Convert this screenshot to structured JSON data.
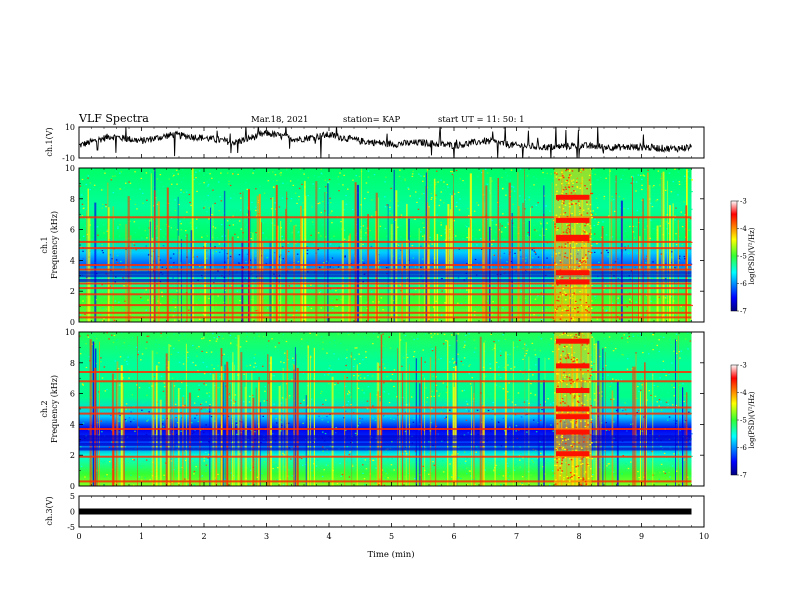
{
  "header": {
    "title": "VLF Spectra",
    "date": "Mar.18, 2021",
    "station": "station= KAP",
    "start": "start UT = 11: 50: 1"
  },
  "chart_data": [
    {
      "type": "line",
      "name": "ch1-waveform",
      "ylabel": "ch.1(V)",
      "xlim": [
        0,
        10
      ],
      "ylim": [
        -10,
        10
      ],
      "yticks": [
        "10",
        "-10"
      ],
      "series": [
        {
          "x": [
            0,
            0.5,
            1,
            1.5,
            2,
            2.5,
            3,
            3.5,
            4,
            4.5,
            5,
            5.5,
            6,
            6.5,
            7,
            7.5,
            8,
            8.5,
            9,
            9.5,
            9.8
          ],
          "values": [
            -2,
            4,
            1,
            5,
            3,
            0,
            6,
            2,
            5,
            1,
            -1,
            0,
            -2,
            1,
            -2,
            -3,
            -2,
            -3,
            -3,
            -4,
            -3
          ]
        }
      ],
      "color": "#000000"
    },
    {
      "type": "heatmap",
      "name": "ch1-spectrogram",
      "ylabel": "ch.1\nFrequency (kHz)",
      "xlim": [
        0,
        10
      ],
      "ylim": [
        0,
        10
      ],
      "yticks": [
        "0",
        "2",
        "4",
        "6",
        "8",
        "10"
      ],
      "colorbar": {
        "label": "log(PSD)(V²/Hz)",
        "min": -7,
        "max": -3,
        "ticks": [
          "-3",
          "-4",
          "-5",
          "-6",
          "-7"
        ]
      },
      "data_end_min": 9.8,
      "strong_bands_khz": [
        0.3,
        0.6,
        1.1,
        1.8,
        2.2,
        2.5,
        3.4,
        3.7,
        4.8,
        5.2,
        6.8
      ],
      "weak_bands_khz": [
        2.7,
        3.0,
        3.2
      ],
      "burst_interval_min": [
        7.6,
        8.2
      ],
      "burst_lines_khz": [
        2.6,
        3.2,
        5.4,
        5.5,
        6.6,
        8.1
      ]
    },
    {
      "type": "heatmap",
      "name": "ch2-spectrogram",
      "ylabel": "ch.2\nFrequency (kHz)",
      "xlim": [
        0,
        10
      ],
      "ylim": [
        0,
        10
      ],
      "yticks": [
        "0",
        "2",
        "4",
        "6",
        "8",
        "10"
      ],
      "colorbar": {
        "label": "log(PSD)(V²/Hz)",
        "min": -7,
        "max": -3,
        "ticks": [
          "-3",
          "-4",
          "-5",
          "-6",
          "-7"
        ]
      },
      "data_end_min": 9.8,
      "strong_bands_khz": [
        0.3,
        1.9,
        3.7,
        4.7,
        5.1,
        6.8,
        7.4
      ],
      "weak_bands_khz": [
        2.4,
        2.7,
        3.0,
        3.2
      ],
      "burst_interval_min": [
        7.6,
        8.2
      ],
      "burst_lines_khz": [
        2.1,
        3.5,
        4.5,
        5.0,
        6.2,
        7.8,
        9.4
      ]
    },
    {
      "type": "line",
      "name": "ch3-waveform",
      "ylabel": "ch.3(V)",
      "xlabel": "Time (min)",
      "xlim": [
        0,
        10
      ],
      "ylim": [
        -5,
        5
      ],
      "yticks": [
        "5",
        "0",
        "-5"
      ],
      "xticks": [
        "0",
        "1",
        "2",
        "3",
        "4",
        "5",
        "6",
        "7",
        "8",
        "9",
        "10"
      ],
      "series": [
        {
          "x": [
            0,
            9.8
          ],
          "values": [
            0,
            0
          ]
        }
      ],
      "color": "#000000"
    }
  ]
}
